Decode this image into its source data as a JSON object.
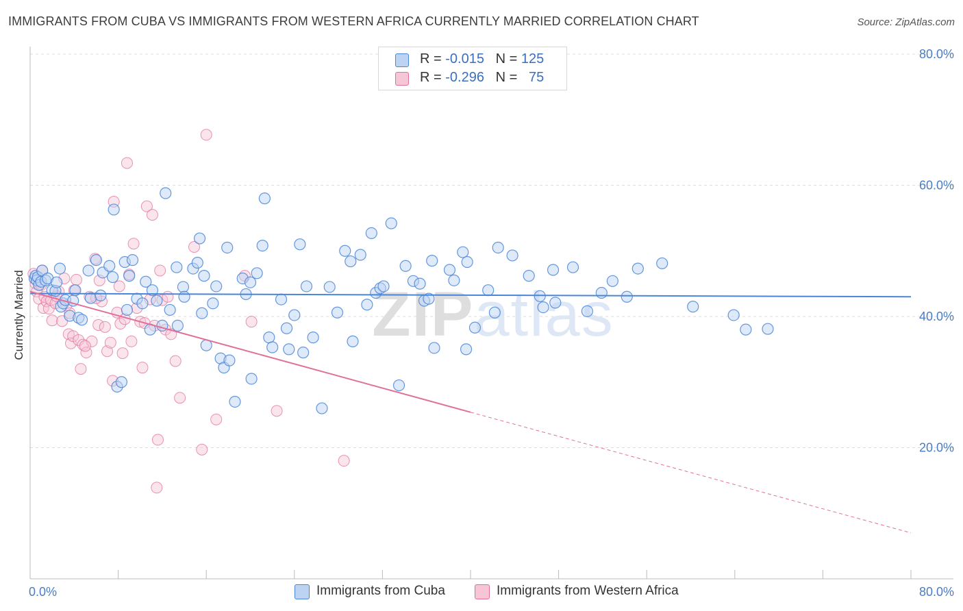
{
  "title": "IMMIGRANTS FROM CUBA VS IMMIGRANTS FROM WESTERN AFRICA CURRENTLY MARRIED CORRELATION CHART",
  "source": "Source: ZipAtlas.com",
  "watermark": "ZIPatlas",
  "colors": {
    "cuba": "#4a86d8",
    "cuba_fill": "#bdd3f3",
    "wafrica": "#e0709a",
    "wafrica_fill": "#f7c6d6",
    "tick": "#4a7cc4",
    "grid": "#dcdcdc"
  },
  "legend": {
    "r_label": "R =",
    "n_label": "N =",
    "cuba": {
      "r": "-0.015",
      "n": "125"
    },
    "wafrica": {
      "r": "-0.296",
      "n": "75"
    }
  },
  "bottom_legend": {
    "cuba": "Immigrants from Cuba",
    "wafrica": "Immigrants from Western Africa"
  },
  "chart_data": {
    "type": "scatter",
    "xlabel": "",
    "ylabel": "Currently Married",
    "xlim": [
      0,
      80
    ],
    "ylim": [
      0,
      80
    ],
    "x_tick_labels": [
      "0.0%",
      "80.0%"
    ],
    "y_ticks": [
      20,
      40,
      60,
      80
    ],
    "y_tick_labels": [
      "20.0%",
      "40.0%",
      "60.0%",
      "80.0%"
    ],
    "grid": true,
    "legend_position": "top-center",
    "series": [
      {
        "name": "Immigrants from Cuba",
        "trend": {
          "x": [
            0,
            80
          ],
          "y": [
            43.5,
            43.0
          ],
          "dashed_from": null
        },
        "points": [
          [
            0.4,
            45.8
          ],
          [
            0.5,
            46.2
          ],
          [
            0.6,
            45.5
          ],
          [
            0.7,
            46.0
          ],
          [
            0.8,
            44.8
          ],
          [
            1.0,
            45.3
          ],
          [
            1.1,
            47.0
          ],
          [
            1.4,
            45.5
          ],
          [
            1.6,
            45.8
          ],
          [
            2.0,
            44.0
          ],
          [
            2.3,
            43.9
          ],
          [
            2.7,
            47.3
          ],
          [
            2.8,
            41.5
          ],
          [
            3.0,
            42.0
          ],
          [
            3.2,
            42.5
          ],
          [
            3.6,
            40.1
          ],
          [
            3.9,
            42.4
          ],
          [
            4.1,
            44.0
          ],
          [
            4.4,
            39.8
          ],
          [
            4.7,
            39.5
          ],
          [
            5.3,
            47.0
          ],
          [
            5.5,
            42.8
          ],
          [
            6.0,
            48.6
          ],
          [
            6.4,
            43.2
          ],
          [
            6.6,
            46.7
          ],
          [
            7.2,
            47.7
          ],
          [
            7.5,
            46.0
          ],
          [
            7.6,
            56.3
          ],
          [
            7.9,
            29.3
          ],
          [
            8.3,
            30.0
          ],
          [
            8.6,
            48.3
          ],
          [
            8.8,
            41.0
          ],
          [
            9.0,
            46.2
          ],
          [
            9.3,
            48.6
          ],
          [
            9.7,
            42.7
          ],
          [
            10.2,
            42.0
          ],
          [
            10.5,
            45.3
          ],
          [
            10.9,
            38.0
          ],
          [
            11.1,
            44.0
          ],
          [
            11.5,
            42.4
          ],
          [
            12.0,
            38.6
          ],
          [
            12.3,
            58.8
          ],
          [
            12.7,
            41.0
          ],
          [
            13.3,
            47.5
          ],
          [
            13.4,
            38.6
          ],
          [
            13.9,
            44.5
          ],
          [
            14.0,
            43.0
          ],
          [
            14.8,
            47.3
          ],
          [
            15.2,
            48.2
          ],
          [
            15.4,
            51.9
          ],
          [
            15.6,
            40.5
          ],
          [
            15.8,
            46.2
          ],
          [
            16.0,
            35.6
          ],
          [
            16.6,
            42.0
          ],
          [
            16.9,
            44.6
          ],
          [
            17.3,
            33.6
          ],
          [
            17.6,
            32.2
          ],
          [
            17.9,
            50.5
          ],
          [
            18.1,
            33.3
          ],
          [
            18.6,
            27.0
          ],
          [
            19.3,
            45.8
          ],
          [
            19.6,
            43.4
          ],
          [
            20.0,
            45.2
          ],
          [
            20.1,
            30.5
          ],
          [
            20.6,
            46.6
          ],
          [
            21.1,
            50.8
          ],
          [
            21.3,
            58.0
          ],
          [
            21.7,
            36.8
          ],
          [
            22.0,
            35.3
          ],
          [
            22.8,
            42.6
          ],
          [
            23.3,
            38.2
          ],
          [
            23.5,
            35.0
          ],
          [
            24.0,
            40.2
          ],
          [
            24.5,
            51.0
          ],
          [
            24.8,
            34.5
          ],
          [
            25.1,
            44.6
          ],
          [
            25.7,
            36.8
          ],
          [
            26.5,
            26.0
          ],
          [
            27.2,
            44.5
          ],
          [
            27.9,
            40.6
          ],
          [
            28.6,
            50.0
          ],
          [
            29.1,
            48.4
          ],
          [
            29.3,
            36.2
          ],
          [
            30.0,
            49.4
          ],
          [
            30.6,
            41.8
          ],
          [
            31.0,
            52.7
          ],
          [
            31.4,
            43.6
          ],
          [
            31.8,
            44.3
          ],
          [
            32.1,
            44.6
          ],
          [
            32.8,
            54.2
          ],
          [
            33.5,
            29.5
          ],
          [
            34.1,
            47.7
          ],
          [
            34.8,
            45.4
          ],
          [
            35.4,
            45.0
          ],
          [
            35.8,
            42.4
          ],
          [
            36.2,
            42.7
          ],
          [
            36.5,
            48.5
          ],
          [
            36.7,
            35.2
          ],
          [
            38.1,
            47.1
          ],
          [
            38.5,
            45.5
          ],
          [
            39.3,
            49.8
          ],
          [
            39.6,
            35.0
          ],
          [
            39.7,
            48.3
          ],
          [
            40.4,
            38.3
          ],
          [
            41.6,
            44.0
          ],
          [
            42.2,
            40.6
          ],
          [
            42.5,
            50.5
          ],
          [
            43.8,
            49.3
          ],
          [
            45.3,
            46.2
          ],
          [
            46.3,
            43.1
          ],
          [
            46.6,
            41.4
          ],
          [
            47.5,
            47.1
          ],
          [
            47.7,
            42.1
          ],
          [
            49.3,
            47.5
          ],
          [
            50.6,
            40.8
          ],
          [
            51.9,
            43.6
          ],
          [
            52.9,
            45.4
          ],
          [
            54.2,
            43.0
          ],
          [
            55.2,
            47.3
          ],
          [
            57.4,
            48.1
          ],
          [
            60.2,
            41.5
          ],
          [
            63.9,
            40.2
          ],
          [
            65.0,
            38.0
          ],
          [
            67.0,
            38.1
          ],
          [
            2.4,
            45.2
          ]
        ]
      },
      {
        "name": "Immigrants from Western Africa",
        "trend": {
          "x": [
            0,
            80
          ],
          "y": [
            43.8,
            7.0
          ],
          "dashed_from": 40
        },
        "points": [
          [
            0.3,
            46.5
          ],
          [
            0.5,
            45.0
          ],
          [
            0.6,
            43.8
          ],
          [
            0.8,
            42.7
          ],
          [
            1.0,
            44.8
          ],
          [
            1.2,
            41.3
          ],
          [
            1.3,
            43.0
          ],
          [
            1.5,
            42.3
          ],
          [
            1.7,
            41.2
          ],
          [
            1.9,
            42.5
          ],
          [
            2.0,
            39.4
          ],
          [
            2.3,
            42.0
          ],
          [
            2.6,
            43.8
          ],
          [
            2.9,
            39.3
          ],
          [
            3.1,
            45.8
          ],
          [
            3.3,
            41.7
          ],
          [
            3.5,
            37.3
          ],
          [
            3.7,
            35.9
          ],
          [
            3.9,
            37.0
          ],
          [
            4.2,
            45.6
          ],
          [
            4.4,
            36.4
          ],
          [
            4.6,
            32.0
          ],
          [
            4.8,
            35.7
          ],
          [
            5.1,
            34.5
          ],
          [
            5.4,
            43.0
          ],
          [
            5.6,
            36.2
          ],
          [
            5.9,
            48.8
          ],
          [
            6.2,
            38.7
          ],
          [
            6.3,
            45.5
          ],
          [
            6.5,
            42.3
          ],
          [
            6.8,
            38.4
          ],
          [
            7.0,
            34.7
          ],
          [
            7.3,
            36.0
          ],
          [
            7.5,
            30.2
          ],
          [
            7.6,
            57.5
          ],
          [
            7.9,
            40.6
          ],
          [
            8.1,
            44.6
          ],
          [
            8.2,
            38.9
          ],
          [
            8.4,
            34.4
          ],
          [
            8.6,
            39.6
          ],
          [
            8.8,
            63.4
          ],
          [
            9.0,
            46.4
          ],
          [
            9.2,
            36.2
          ],
          [
            9.4,
            51.1
          ],
          [
            9.7,
            41.3
          ],
          [
            10.0,
            39.2
          ],
          [
            10.2,
            32.2
          ],
          [
            10.4,
            39.0
          ],
          [
            10.6,
            56.8
          ],
          [
            10.9,
            42.6
          ],
          [
            11.1,
            55.5
          ],
          [
            11.3,
            38.6
          ],
          [
            11.6,
            21.2
          ],
          [
            11.8,
            47.0
          ],
          [
            12.0,
            42.5
          ],
          [
            12.3,
            38.0
          ],
          [
            12.5,
            43.0
          ],
          [
            12.8,
            37.3
          ],
          [
            13.2,
            33.2
          ],
          [
            13.6,
            27.6
          ],
          [
            14.9,
            50.6
          ],
          [
            15.6,
            19.7
          ],
          [
            16.0,
            67.7
          ],
          [
            16.9,
            24.3
          ],
          [
            19.5,
            46.2
          ],
          [
            20.1,
            39.2
          ],
          [
            22.4,
            25.6
          ],
          [
            28.5,
            18.0
          ],
          [
            5.0,
            35.5
          ],
          [
            3.6,
            40.5
          ],
          [
            2.4,
            43.1
          ],
          [
            6.0,
            42.8
          ],
          [
            4.0,
            44.0
          ],
          [
            11.5,
            13.9
          ],
          [
            1.1,
            47.0
          ]
        ]
      }
    ]
  }
}
